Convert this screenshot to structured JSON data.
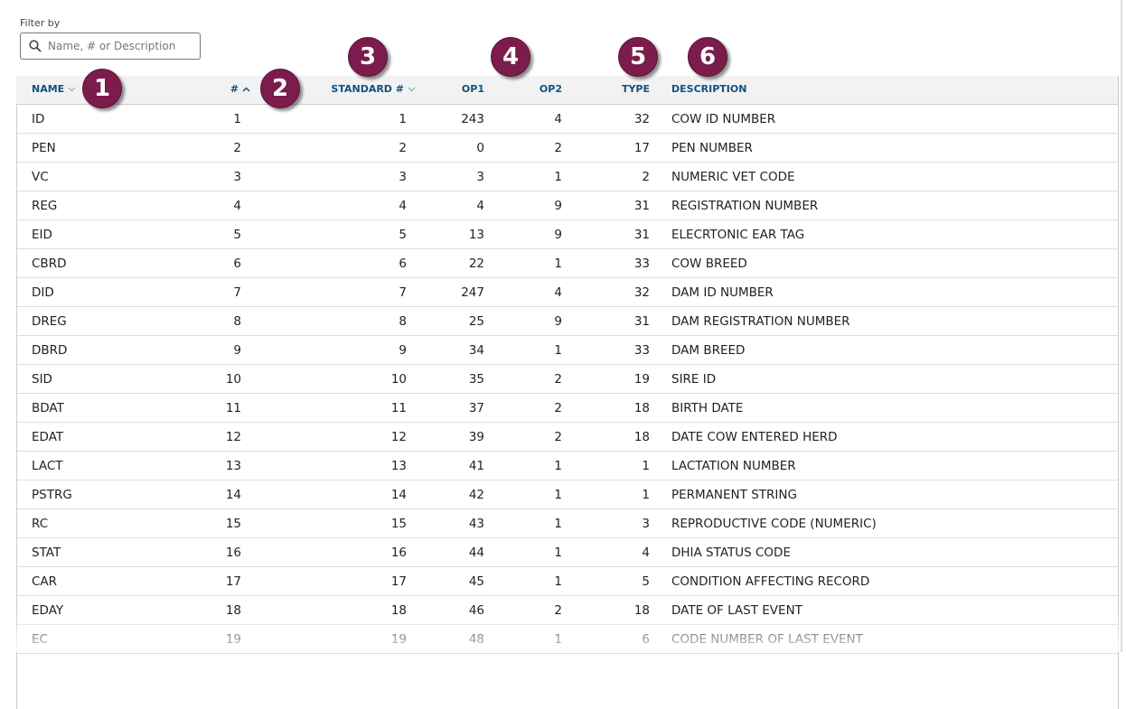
{
  "filter": {
    "label": "Filter by",
    "placeholder": "Name, # or Description"
  },
  "badges": [
    "1",
    "2",
    "3",
    "4",
    "5",
    "6"
  ],
  "table": {
    "headers": [
      "NAME",
      "#",
      "STANDARD #",
      "OP1",
      "OP2",
      "TYPE",
      "DESCRIPTION"
    ],
    "rows": [
      [
        "ID",
        1,
        1,
        243,
        4,
        32,
        "COW ID NUMBER"
      ],
      [
        "PEN",
        2,
        2,
        0,
        2,
        17,
        "PEN NUMBER"
      ],
      [
        "VC",
        3,
        3,
        3,
        1,
        2,
        "NUMERIC VET CODE"
      ],
      [
        "REG",
        4,
        4,
        4,
        9,
        31,
        "REGISTRATION NUMBER"
      ],
      [
        "EID",
        5,
        5,
        13,
        9,
        31,
        "ELECRTONIC EAR TAG"
      ],
      [
        "CBRD",
        6,
        6,
        22,
        1,
        33,
        "COW BREED"
      ],
      [
        "DID",
        7,
        7,
        247,
        4,
        32,
        "DAM ID NUMBER"
      ],
      [
        "DREG",
        8,
        8,
        25,
        9,
        31,
        "DAM REGISTRATION NUMBER"
      ],
      [
        "DBRD",
        9,
        9,
        34,
        1,
        33,
        "DAM BREED"
      ],
      [
        "SID",
        10,
        10,
        35,
        2,
        19,
        "SIRE ID"
      ],
      [
        "BDAT",
        11,
        11,
        37,
        2,
        18,
        "BIRTH DATE"
      ],
      [
        "EDAT",
        12,
        12,
        39,
        2,
        18,
        "DATE COW ENTERED HERD"
      ],
      [
        "LACT",
        13,
        13,
        41,
        1,
        1,
        "LACTATION NUMBER"
      ],
      [
        "PSTRG",
        14,
        14,
        42,
        1,
        1,
        "PERMANENT STRING"
      ],
      [
        "RC",
        15,
        15,
        43,
        1,
        3,
        "REPRODUCTIVE CODE (NUMERIC)"
      ],
      [
        "STAT",
        16,
        16,
        44,
        1,
        4,
        "DHIA STATUS CODE"
      ],
      [
        "CAR",
        17,
        17,
        45,
        1,
        5,
        "CONDITION AFFECTING RECORD"
      ],
      [
        "EDAY",
        18,
        18,
        46,
        2,
        18,
        "DATE OF LAST EVENT"
      ],
      [
        "EC",
        19,
        19,
        48,
        1,
        6,
        "CODE NUMBER OF LAST EVENT"
      ]
    ]
  }
}
